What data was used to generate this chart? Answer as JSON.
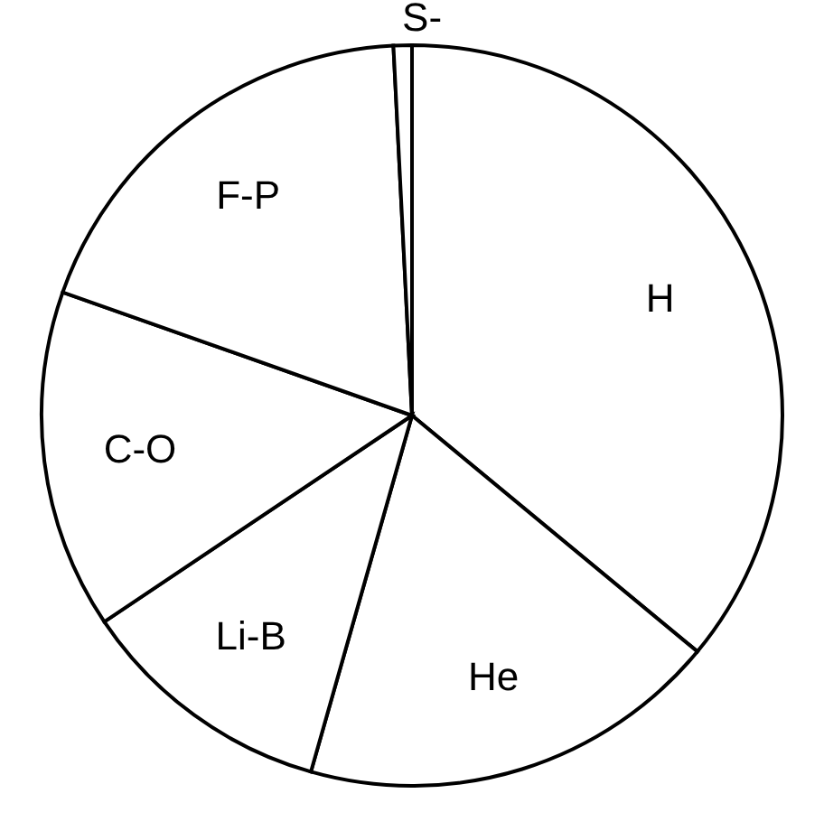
{
  "chart_data": {
    "type": "pie",
    "categories": [
      "H",
      "He",
      "Li-B",
      "C-O",
      "F-P",
      "S-"
    ],
    "values": [
      36,
      18.4,
      11.2,
      14.8,
      18.8,
      0.8
    ],
    "colors": [
      "#ffffff",
      "#ffffff",
      "#ffffff",
      "#ffffff",
      "#ffffff",
      "#ffffff"
    ]
  }
}
